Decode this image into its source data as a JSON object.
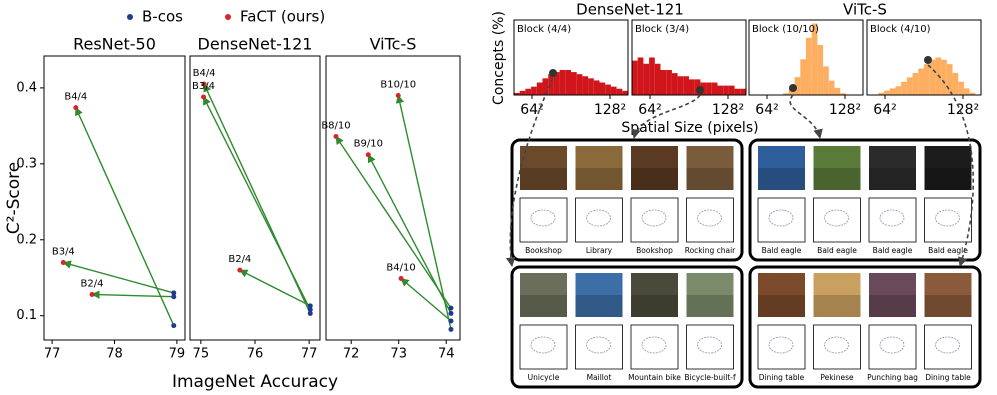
{
  "chart_data": [
    {
      "type": "scatter",
      "title": "ResNet-50",
      "ylabel": "C²-Score",
      "xlim": [
        76.87,
        79.13
      ],
      "xticks": [
        77,
        78,
        79
      ],
      "ylim": [
        0.068,
        0.442
      ],
      "yticks": [
        0.1,
        0.2,
        0.3,
        0.4
      ],
      "series": [
        {
          "name": "B-cos",
          "color": "#1f3b8c",
          "x": [
            78.95,
            78.95,
            78.95
          ],
          "values": [
            0.087,
            0.13,
            0.125
          ]
        },
        {
          "name": "FaCT (ours)",
          "color": "#d62728",
          "x": [
            77.38,
            77.18,
            77.64
          ],
          "values": [
            0.374,
            0.17,
            0.128
          ],
          "labels": [
            "B4/4",
            "B3/4",
            "B2/4"
          ]
        }
      ]
    },
    {
      "type": "scatter",
      "title": "DenseNet-121",
      "xlabel": "ImageNet Accuracy",
      "xlim": [
        74.8,
        77.2
      ],
      "xticks": [
        75,
        76,
        77
      ],
      "ylim": [
        0.068,
        0.442
      ],
      "series": [
        {
          "color": "#1f3b8c",
          "x": [
            77.02,
            77.02,
            77.02
          ],
          "values": [
            0.103,
            0.108,
            0.113
          ]
        },
        {
          "color": "#d62728",
          "x": [
            75.06,
            75.05,
            75.72
          ],
          "values": [
            0.405,
            0.388,
            0.16
          ],
          "labels": [
            "B4/4",
            "B3/4",
            "B2/4"
          ]
        }
      ]
    },
    {
      "type": "scatter",
      "title": "ViTc-S",
      "xlim": [
        71.47,
        74.29
      ],
      "xticks": [
        72,
        73,
        74
      ],
      "ylim": [
        0.068,
        0.442
      ],
      "series": [
        {
          "color": "#1f3b8c",
          "x": [
            74.1,
            74.1,
            74.1,
            74.1
          ],
          "values": [
            0.082,
            0.11,
            0.103,
            0.093
          ]
        },
        {
          "color": "#d62728",
          "x": [
            72.99,
            71.68,
            72.36,
            73.05
          ],
          "values": [
            0.39,
            0.336,
            0.312,
            0.149
          ],
          "labels": [
            "B10/10",
            "B8/10",
            "B9/10",
            "B4/10"
          ]
        }
      ]
    },
    {
      "type": "histogram",
      "title": "DenseNet-121",
      "ylabel": "Concepts (%)",
      "annotation": "Block (4/4)",
      "color": "#d0161b",
      "bins": [
        1260,
        2158,
        3056,
        3954,
        4852,
        5750,
        6648,
        7546,
        8444,
        9342,
        10240,
        11138,
        12036,
        12934,
        13832,
        14730,
        15628,
        16526,
        17424,
        18322,
        19220
      ],
      "values": [
        0.5,
        1,
        1.5,
        2,
        3,
        4,
        5,
        5.5,
        6,
        6,
        5.5,
        5,
        4.5,
        4,
        3.5,
        3,
        2.5,
        2,
        1.5,
        1
      ],
      "xlim": [
        1260,
        19220
      ],
      "xticks": [
        {
          "value": 4096,
          "label": "64²"
        },
        {
          "value": 16384,
          "label": "128²"
        }
      ],
      "ylim": [
        0,
        18
      ]
    },
    {
      "type": "histogram",
      "annotation": "Block (3/4)",
      "color": "#d0161b",
      "xlabel": "Spatial Size (pixels)",
      "bins": [
        1260,
        2158,
        3056,
        3954,
        4852,
        5750,
        6648,
        7546,
        8444,
        9342,
        10240,
        11138,
        12036,
        12934,
        13832,
        14730,
        15628,
        16526,
        17424,
        18322,
        19220
      ],
      "values": [
        5.5,
        6,
        5,
        6,
        5,
        4,
        4,
        3.5,
        3,
        3,
        2.5,
        2.5,
        2,
        2,
        2,
        1.5,
        1.5,
        1.5,
        1,
        1
      ],
      "xlim": [
        1260,
        19220
      ],
      "xticks": [
        {
          "value": 4096,
          "label": "64²"
        },
        {
          "value": 16384,
          "label": "128²"
        }
      ],
      "ylim": [
        0,
        12
      ]
    },
    {
      "type": "histogram",
      "title": "ViTc-S",
      "annotation": "Block (10/10)",
      "color": "#fdae61",
      "bins": [
        1260,
        2158,
        3056,
        3954,
        4852,
        5750,
        6648,
        7546,
        8444,
        9342,
        10240,
        11138,
        12036,
        12934,
        13832,
        14730,
        15628,
        16526,
        17424,
        18322,
        19220
      ],
      "values": [
        0,
        0,
        0,
        0,
        0,
        0,
        0.5,
        2,
        5,
        10,
        16,
        20,
        14,
        8,
        4,
        2,
        0.5,
        0,
        0,
        0
      ],
      "xlim": [
        1260,
        19220
      ],
      "xticks": [
        {
          "value": 4096,
          "label": "64²"
        },
        {
          "value": 16384,
          "label": "128²"
        }
      ],
      "ylim": [
        0,
        21
      ]
    },
    {
      "type": "histogram",
      "annotation": "Block (4/10)",
      "color": "#fdae61",
      "bins": [
        1260,
        2158,
        3056,
        3954,
        4852,
        5750,
        6648,
        7546,
        8444,
        9342,
        10240,
        11138,
        12036,
        12934,
        13832,
        14730,
        15628,
        16526,
        17424,
        18322,
        19220
      ],
      "values": [
        0,
        0,
        0.5,
        1,
        1.5,
        2,
        3,
        4,
        5,
        6,
        7,
        8,
        8.5,
        8,
        7,
        5,
        3,
        1.5,
        0.5,
        0
      ],
      "xlim": [
        1260,
        19220
      ],
      "xticks": [
        {
          "value": 4096,
          "label": "64²"
        },
        {
          "value": 16384,
          "label": "128²"
        }
      ],
      "ylim": [
        0,
        17
      ]
    }
  ],
  "panels": [
    {
      "captions": [
        "Bookshop",
        "Library",
        "Bookshop",
        "Rocking chair"
      ]
    },
    {
      "captions": [
        "Bald eagle",
        "Bald eagle",
        "Bald eagle",
        "Bald eagle"
      ]
    },
    {
      "captions": [
        "Unicycle",
        "Maillot",
        "Mountain bike",
        "Bicycle-built-f"
      ]
    },
    {
      "captions": [
        "Dining table",
        "Pekinese",
        "Punching bag",
        "Dining table"
      ]
    }
  ]
}
